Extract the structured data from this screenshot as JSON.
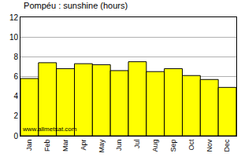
{
  "chart_data": {
    "type": "bar",
    "title": "Pompéu : sunshine (hours)",
    "categories": [
      "Jan",
      "Feb",
      "Mar",
      "Apr",
      "May",
      "Jun",
      "Jul",
      "Aug",
      "Sep",
      "Oct",
      "Nov",
      "Dec"
    ],
    "values": [
      5.8,
      7.4,
      6.8,
      7.3,
      7.2,
      6.6,
      7.5,
      6.5,
      6.8,
      6.1,
      5.7,
      4.9
    ],
    "color": "#ffff00",
    "ylim": [
      0,
      12
    ],
    "yticks": [
      0,
      2,
      4,
      6,
      8,
      10,
      12
    ],
    "grid": true,
    "annotations": [
      "www.allmetsat.com"
    ]
  }
}
